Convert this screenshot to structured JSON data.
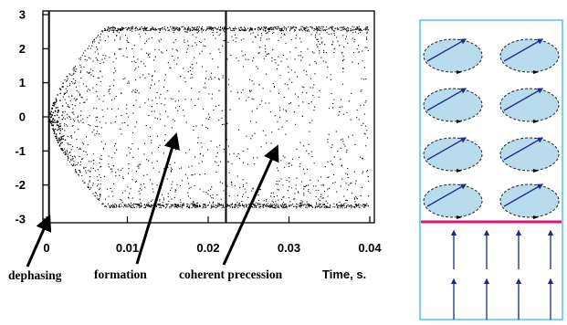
{
  "chart_data": {
    "type": "scatter",
    "xlabel": "Time, s.",
    "ylabel": "",
    "xlim": [
      0,
      0.04
    ],
    "ylim": [
      -3,
      3
    ],
    "x_ticks": [
      "0",
      "0.01",
      "0.02",
      "0.03",
      "0.04"
    ],
    "y_ticks": [
      "3",
      "2",
      "1",
      "0",
      "-1",
      "-2",
      "-3"
    ],
    "grid": false,
    "marker_vertical_lines_x": [
      0.0003,
      0.0222
    ],
    "dot_bands": {
      "top_band_y": 2.6,
      "bottom_band_y": -2.6,
      "transition_start_x": 0.0005,
      "full_spread_x": 0.007
    },
    "annotations": [
      {
        "text": "dephasing",
        "points_to_x": 0.0003,
        "points_to_y": -2.95
      },
      {
        "text": "formation",
        "points_to_x": 0.016,
        "points_to_y": -0.55
      },
      {
        "text": "coherent precession",
        "points_to_x": 0.0285,
        "points_to_y": -0.9
      }
    ]
  },
  "schematic": {
    "border_color": "#4fc3f7",
    "divider_color": "#e0107a",
    "ellipse_fill": "#b8dced",
    "arrow_color": "#1f2a8a",
    "ellipse_rows": 4,
    "ellipse_cols": 2,
    "up_arrow_rows": 2,
    "up_arrow_cols": 4
  }
}
